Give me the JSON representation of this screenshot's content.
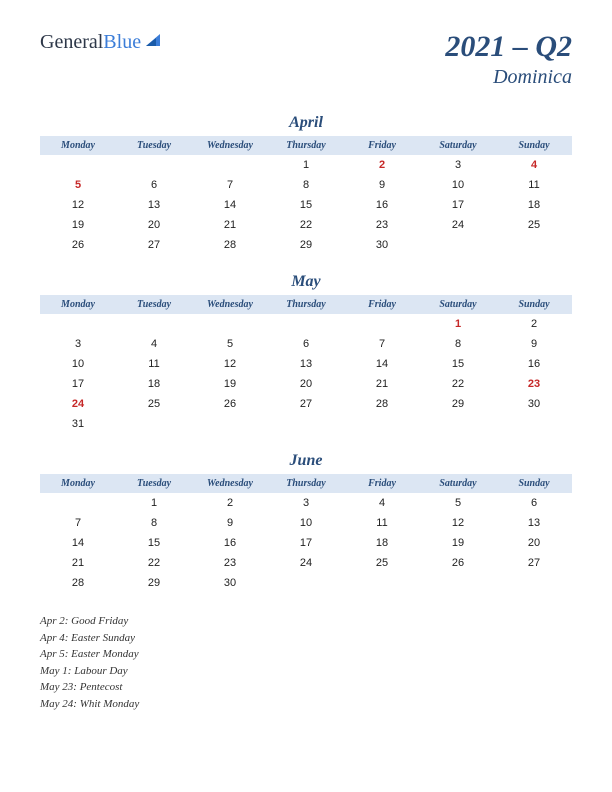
{
  "logo": {
    "general": "General",
    "blue": "Blue"
  },
  "title": {
    "year_quarter": "2021 – Q2",
    "country": "Dominica"
  },
  "day_headers": [
    "Monday",
    "Tuesday",
    "Wednesday",
    "Thursday",
    "Friday",
    "Saturday",
    "Sunday"
  ],
  "colors": {
    "header_bg": "#dce6f3",
    "accent": "#2a4d7a",
    "holiday": "#c62828"
  },
  "months": [
    {
      "name": "April",
      "weeks": [
        [
          null,
          null,
          null,
          {
            "d": "1"
          },
          {
            "d": "2",
            "h": true
          },
          {
            "d": "3"
          },
          {
            "d": "4",
            "h": true
          }
        ],
        [
          {
            "d": "5",
            "h": true
          },
          {
            "d": "6"
          },
          {
            "d": "7"
          },
          {
            "d": "8"
          },
          {
            "d": "9"
          },
          {
            "d": "10"
          },
          {
            "d": "11"
          }
        ],
        [
          {
            "d": "12"
          },
          {
            "d": "13"
          },
          {
            "d": "14"
          },
          {
            "d": "15"
          },
          {
            "d": "16"
          },
          {
            "d": "17"
          },
          {
            "d": "18"
          }
        ],
        [
          {
            "d": "19"
          },
          {
            "d": "20"
          },
          {
            "d": "21"
          },
          {
            "d": "22"
          },
          {
            "d": "23"
          },
          {
            "d": "24"
          },
          {
            "d": "25"
          }
        ],
        [
          {
            "d": "26"
          },
          {
            "d": "27"
          },
          {
            "d": "28"
          },
          {
            "d": "29"
          },
          {
            "d": "30"
          },
          null,
          null
        ]
      ]
    },
    {
      "name": "May",
      "weeks": [
        [
          null,
          null,
          null,
          null,
          null,
          {
            "d": "1",
            "h": true
          },
          {
            "d": "2"
          }
        ],
        [
          {
            "d": "3"
          },
          {
            "d": "4"
          },
          {
            "d": "5"
          },
          {
            "d": "6"
          },
          {
            "d": "7"
          },
          {
            "d": "8"
          },
          {
            "d": "9"
          }
        ],
        [
          {
            "d": "10"
          },
          {
            "d": "11"
          },
          {
            "d": "12"
          },
          {
            "d": "13"
          },
          {
            "d": "14"
          },
          {
            "d": "15"
          },
          {
            "d": "16"
          }
        ],
        [
          {
            "d": "17"
          },
          {
            "d": "18"
          },
          {
            "d": "19"
          },
          {
            "d": "20"
          },
          {
            "d": "21"
          },
          {
            "d": "22"
          },
          {
            "d": "23",
            "h": true
          }
        ],
        [
          {
            "d": "24",
            "h": true
          },
          {
            "d": "25"
          },
          {
            "d": "26"
          },
          {
            "d": "27"
          },
          {
            "d": "28"
          },
          {
            "d": "29"
          },
          {
            "d": "30"
          }
        ],
        [
          {
            "d": "31"
          },
          null,
          null,
          null,
          null,
          null,
          null
        ]
      ]
    },
    {
      "name": "June",
      "weeks": [
        [
          null,
          {
            "d": "1"
          },
          {
            "d": "2"
          },
          {
            "d": "3"
          },
          {
            "d": "4"
          },
          {
            "d": "5"
          },
          {
            "d": "6"
          }
        ],
        [
          {
            "d": "7"
          },
          {
            "d": "8"
          },
          {
            "d": "9"
          },
          {
            "d": "10"
          },
          {
            "d": "11"
          },
          {
            "d": "12"
          },
          {
            "d": "13"
          }
        ],
        [
          {
            "d": "14"
          },
          {
            "d": "15"
          },
          {
            "d": "16"
          },
          {
            "d": "17"
          },
          {
            "d": "18"
          },
          {
            "d": "19"
          },
          {
            "d": "20"
          }
        ],
        [
          {
            "d": "21"
          },
          {
            "d": "22"
          },
          {
            "d": "23"
          },
          {
            "d": "24"
          },
          {
            "d": "25"
          },
          {
            "d": "26"
          },
          {
            "d": "27"
          }
        ],
        [
          {
            "d": "28"
          },
          {
            "d": "29"
          },
          {
            "d": "30"
          },
          null,
          null,
          null,
          null
        ]
      ]
    }
  ],
  "holidays": [
    "Apr 2: Good Friday",
    "Apr 4: Easter Sunday",
    "Apr 5: Easter Monday",
    "May 1: Labour Day",
    "May 23: Pentecost",
    "May 24: Whit Monday"
  ]
}
